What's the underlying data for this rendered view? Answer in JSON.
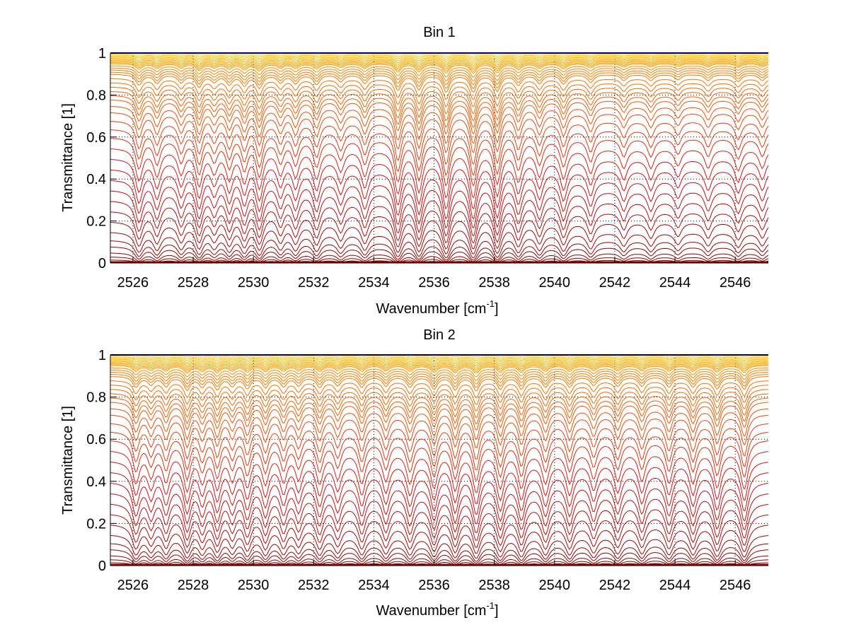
{
  "chart_data": [
    {
      "type": "line",
      "title": "Bin 1",
      "xlabel": "Wavenumber [cm",
      "xlabel_sup": "-1",
      "xlabel_end": "]",
      "ylabel": "Transmittance [1]",
      "xlim": [
        2525.25,
        2547.1
      ],
      "ylim": [
        0,
        1
      ],
      "xticks": [
        "2526",
        "2528",
        "2530",
        "2532",
        "2534",
        "2536",
        "2538",
        "2540",
        "2542",
        "2544",
        "2546"
      ],
      "xtick_values": [
        2526,
        2528,
        2530,
        2532,
        2534,
        2536,
        2538,
        2540,
        2542,
        2544,
        2546
      ],
      "yticks": [
        "0",
        "0.2",
        "0.4",
        "0.6",
        "0.8",
        "1"
      ],
      "ytick_values": [
        0,
        0.2,
        0.4,
        0.6,
        0.8,
        1
      ],
      "grid": "dotted",
      "series_description": "family of transmittance spectra, one per column optical depth",
      "line_centers": [
        2526.2,
        2526.8,
        2527.6,
        2528.2,
        2528.7,
        2529.2,
        2529.7,
        2530.2,
        2530.9,
        2531.4,
        2532.1,
        2532.9,
        2533.7,
        2534.8,
        2535.5,
        2536.4,
        2537.3,
        2538.1,
        2538.8,
        2539.5,
        2540.3,
        2541.2,
        2542.3,
        2543.2,
        2544.1,
        2545.1,
        2546.1,
        2546.9
      ],
      "line_strengths": [
        0.6,
        0.5,
        0.45,
        0.7,
        0.4,
        0.55,
        0.6,
        0.75,
        0.45,
        0.5,
        0.55,
        0.4,
        0.5,
        0.9,
        0.85,
        1.0,
        1.0,
        0.95,
        0.6,
        0.5,
        0.55,
        0.45,
        0.35,
        0.35,
        0.3,
        0.35,
        0.4,
        0.35
      ],
      "transmittance_levels": [
        1.0,
        0.995,
        0.99,
        0.985,
        0.98,
        0.975,
        0.97,
        0.965,
        0.96,
        0.955,
        0.95,
        0.94,
        0.93,
        0.92,
        0.91,
        0.9,
        0.88,
        0.86,
        0.84,
        0.82,
        0.8,
        0.78,
        0.75,
        0.72,
        0.68,
        0.64,
        0.6,
        0.55,
        0.5,
        0.45,
        0.4,
        0.35,
        0.3,
        0.25,
        0.2,
        0.15,
        0.11,
        0.08,
        0.05,
        0.03,
        0.015,
        0.005
      ]
    },
    {
      "type": "line",
      "title": "Bin 2",
      "xlabel": "Wavenumber [cm",
      "xlabel_sup": "-1",
      "xlabel_end": "]",
      "ylabel": "Transmittance [1]",
      "xlim": [
        2525.25,
        2547.1
      ],
      "ylim": [
        0,
        1
      ],
      "xticks": [
        "2526",
        "2528",
        "2530",
        "2532",
        "2534",
        "2536",
        "2538",
        "2540",
        "2542",
        "2544",
        "2546"
      ],
      "xtick_values": [
        2526,
        2528,
        2530,
        2532,
        2534,
        2536,
        2538,
        2540,
        2542,
        2544,
        2546
      ],
      "yticks": [
        "0",
        "0.2",
        "0.4",
        "0.6",
        "0.8",
        "1"
      ],
      "ytick_values": [
        0,
        0.2,
        0.4,
        0.6,
        0.8,
        1
      ],
      "grid": "dotted",
      "series_description": "family of transmittance spectra, one per column optical depth",
      "line_centers": [
        2526.1,
        2526.6,
        2527.1,
        2527.8,
        2528.3,
        2528.8,
        2529.3,
        2529.8,
        2530.4,
        2531.0,
        2531.5,
        2532.2,
        2532.8,
        2533.6,
        2534.4,
        2535.2,
        2536.0,
        2536.7,
        2537.4,
        2538.2,
        2538.9,
        2539.7,
        2540.5,
        2541.3,
        2542.1,
        2542.9,
        2543.8,
        2544.6,
        2545.4,
        2546.3
      ],
      "line_strengths": [
        0.6,
        0.45,
        0.55,
        0.75,
        0.55,
        0.7,
        0.5,
        0.65,
        0.6,
        0.55,
        0.5,
        0.6,
        0.5,
        0.6,
        0.55,
        0.6,
        0.7,
        0.75,
        0.8,
        0.7,
        0.7,
        0.6,
        0.6,
        0.5,
        0.55,
        0.55,
        0.6,
        0.6,
        0.7,
        0.75
      ],
      "transmittance_levels": [
        1.0,
        0.995,
        0.99,
        0.985,
        0.98,
        0.975,
        0.97,
        0.965,
        0.96,
        0.955,
        0.95,
        0.94,
        0.93,
        0.92,
        0.91,
        0.9,
        0.88,
        0.86,
        0.84,
        0.82,
        0.8,
        0.78,
        0.75,
        0.72,
        0.68,
        0.64,
        0.6,
        0.55,
        0.5,
        0.45,
        0.4,
        0.35,
        0.3,
        0.25,
        0.2,
        0.15,
        0.11,
        0.08,
        0.05,
        0.03,
        0.015,
        0.005
      ]
    }
  ],
  "colors": {
    "top_line": "#000080",
    "low": "#8b0000",
    "mid": "#e01010",
    "high": "#ff8000",
    "near_one": "#ffd000"
  }
}
